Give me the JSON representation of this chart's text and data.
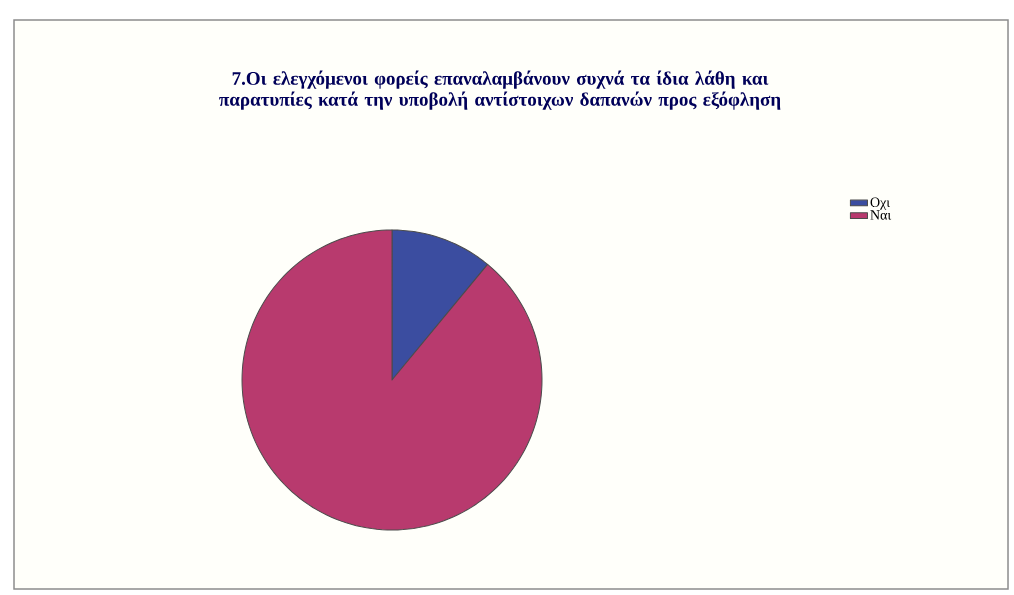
{
  "chart_data": {
    "type": "pie",
    "title": "7.Οι ελεγχόμενοι φορείς επαναλαμβάνουν συχνά τα ίδια λάθη και παρατυπίες κατά την υποβολή αντίστοιχων δαπανών προς εξόφληση",
    "categories": [
      "Οχι",
      "Ναι"
    ],
    "values": [
      11,
      89
    ],
    "colors": [
      "#3b4da0",
      "#b83a6e"
    ],
    "legend": "right"
  }
}
